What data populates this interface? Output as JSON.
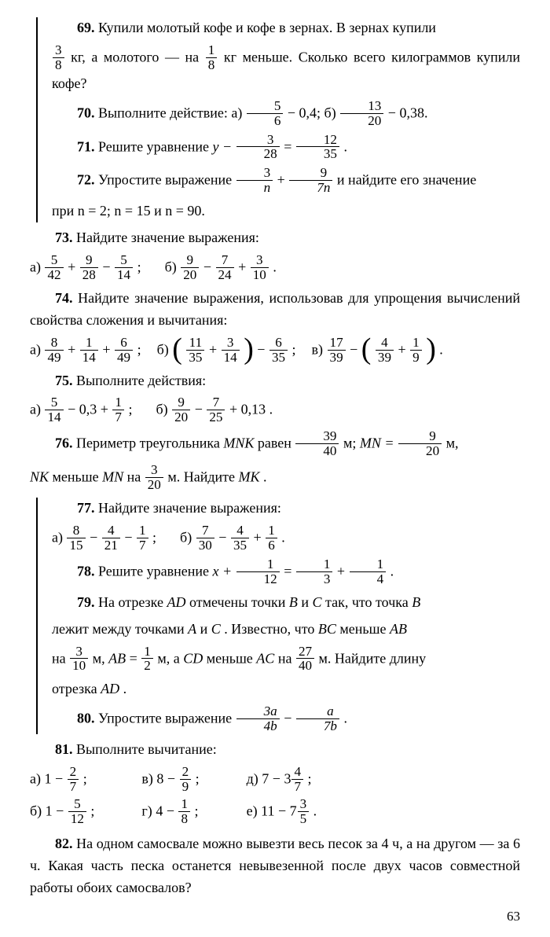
{
  "p69": {
    "num": "69.",
    "t1": "Купили молотый кофе и кофе в зернах. В зернах купили",
    "f1_top": "3",
    "f1_bot": "8",
    "t2": "кг, а молотого — на",
    "f2_top": "1",
    "f2_bot": "8",
    "t3": "кг меньше. Сколько всего килограммов купили кофе?"
  },
  "p70": {
    "num": "70.",
    "t1": "Выполните действие:  а)",
    "fa_top": "5",
    "fa_bot": "6",
    "t2": " − 0,4;   б)",
    "fb_top": "13",
    "fb_bot": "20",
    "t3": " − 0,38."
  },
  "p71": {
    "num": "71.",
    "t1": "Решите уравнение   ",
    "t2": "y −",
    "f1_top": "3",
    "f1_bot": "28",
    "t3": "=",
    "f2_top": "12",
    "f2_bot": "35",
    "t4": "."
  },
  "p72": {
    "num": "72.",
    "t1": "Упростите выражение",
    "f1_top": "3",
    "f1_bot": "n",
    "t2": "+",
    "f2_top": "9",
    "f2_bot": "7n",
    "t3": "и найдите его значение",
    "t4": "при  n = 2;  n = 15  и  n = 90."
  },
  "p73": {
    "num": "73.",
    "t1": "Найдите значение выражения:",
    "opts": {
      "a": {
        "lbl": "а)",
        "f1_t": "5",
        "f1_b": "42",
        "op1": "+",
        "f2_t": "9",
        "f2_b": "28",
        "op2": "−",
        "f3_t": "5",
        "f3_b": "14",
        "end": ";"
      },
      "b": {
        "lbl": "б)",
        "f1_t": "9",
        "f1_b": "20",
        "op1": "−",
        "f2_t": "7",
        "f2_b": "24",
        "op2": "+",
        "f3_t": "3",
        "f3_b": "10",
        "end": "."
      }
    }
  },
  "p74": {
    "num": "74.",
    "t1": "Найдите значение выражения, использовав для упрощения вычислений свойства сложения и вычитания:",
    "opts": {
      "a": {
        "lbl": "а)",
        "f1_t": "8",
        "f1_b": "49",
        "op1": "+",
        "f2_t": "1",
        "f2_b": "14",
        "op2": "+",
        "f3_t": "6",
        "f3_b": "49",
        "end": ";"
      },
      "b": {
        "lbl": "б)",
        "f1_t": "11",
        "f1_b": "35",
        "op1": "+",
        "f2_t": "3",
        "f2_b": "14",
        "op2": "−",
        "f3_t": "6",
        "f3_b": "35",
        "end": ";"
      },
      "c": {
        "lbl": "в)",
        "f1_t": "17",
        "f1_b": "39",
        "op1": "−",
        "f2_t": "4",
        "f2_b": "39",
        "op2": "+",
        "f3_t": "1",
        "f3_b": "9",
        "end": "."
      }
    }
  },
  "p75": {
    "num": "75.",
    "t1": "Выполните действия:",
    "opts": {
      "a": {
        "lbl": "а)",
        "f1_t": "5",
        "f1_b": "14",
        "t1": " − 0,3 + ",
        "f2_t": "1",
        "f2_b": "7",
        "end": ";"
      },
      "b": {
        "lbl": "б)",
        "f1_t": "9",
        "f1_b": "20",
        "t1": " − ",
        "f2_t": "7",
        "f2_b": "25",
        "t2": " + 0,13",
        "end": "."
      }
    }
  },
  "p76": {
    "num": "76.",
    "t1": "Периметр треугольника ",
    "mnk": "MNK",
    "t2": " равен ",
    "f1_t": "39",
    "f1_b": "40",
    "t3": " м;   ",
    "eq_l": "MN =",
    "f2_t": "9",
    "f2_b": "20",
    "t4": " м,",
    "t5": "NK",
    "t6": " меньше ",
    "t7": "MN",
    "t8": " на ",
    "f3_t": "3",
    "f3_b": "20",
    "t9": " м. Найдите ",
    "t10": "MK",
    "t11": "."
  },
  "p77": {
    "num": "77.",
    "t1": "Найдите значение выражения:",
    "opts": {
      "a": {
        "lbl": "а)",
        "f1_t": "8",
        "f1_b": "15",
        "op1": "−",
        "f2_t": "4",
        "f2_b": "21",
        "op2": "−",
        "f3_t": "1",
        "f3_b": "7",
        "end": ";"
      },
      "b": {
        "lbl": "б)",
        "f1_t": "7",
        "f1_b": "30",
        "op1": "−",
        "f2_t": "4",
        "f2_b": "35",
        "op2": "+",
        "f3_t": "1",
        "f3_b": "6",
        "end": "."
      }
    }
  },
  "p78": {
    "num": "78.",
    "t1": "Решите уравнение   ",
    "t2": "x +",
    "f1_t": "1",
    "f1_b": "12",
    "t3": "=",
    "f2_t": "1",
    "f2_b": "3",
    "t4": "+",
    "f3_t": "1",
    "f3_b": "4",
    "t5": "."
  },
  "p79": {
    "num": "79.",
    "t1": "На отрезке ",
    "ad": "AD",
    "t2": " отмечены точки ",
    "b": "B",
    "t3": " и ",
    "c": "C",
    "t4": " так, что точка ",
    "b2": "B",
    "t5": "лежит  между  точками ",
    "a": "A",
    "t6": "  и  ",
    "c2": "C",
    "t7": ".  Известно,  что  ",
    "bc": "BC",
    "t8": "  меньше  ",
    "ab": "AB",
    "t9": "на ",
    "f1_t": "3",
    "f1_b": "10",
    "t10": " м,  ",
    "ab2": "AB",
    "t11": " = ",
    "f2_t": "1",
    "f2_b": "2",
    "t12": " м,  а  ",
    "cd": "CD",
    "t13": " меньше  ",
    "ac": "AC",
    "t14": "  на  ",
    "f3_t": "27",
    "f3_b": "40",
    "t15": " м. Найдите длину",
    "t16": "отрезка ",
    "ad2": "AD",
    "t17": "."
  },
  "p80": {
    "num": "80.",
    "t1": "Упростите выражение   ",
    "f1_t": "3a",
    "f1_b": "4b",
    "t2": " − ",
    "f2_t": "a",
    "f2_b": "7b",
    "t3": "."
  },
  "p81": {
    "num": "81.",
    "t1": "Выполните вычитание:",
    "opts": {
      "a": {
        "lbl": "а)",
        "lhs": "1 −",
        "f_t": "2",
        "f_b": "7",
        "end": ";"
      },
      "b": {
        "lbl": "б)",
        "lhs": "1 −",
        "f_t": "5",
        "f_b": "12",
        "end": ";"
      },
      "c": {
        "lbl": "в)",
        "lhs": "8 −",
        "f_t": "2",
        "f_b": "9",
        "end": ";"
      },
      "d": {
        "lbl": "г)",
        "lhs": "4 −",
        "f_t": "1",
        "f_b": "8",
        "end": ";"
      },
      "e": {
        "lbl": "д)",
        "lhs": "7 − 3",
        "f_t": "4",
        "f_b": "7",
        "end": ";"
      },
      "f": {
        "lbl": "е)",
        "lhs": "11 − 7",
        "f_t": "3",
        "f_b": "5",
        "end": "."
      }
    }
  },
  "p82": {
    "num": "82.",
    "t1": "На одном самосвале можно вывезти весь песок за 4 ч, а на другом — за 6 ч. Какая часть песка останется невывезенной после двух часов совместной работы обоих самосвалов?"
  },
  "page_number": "63"
}
